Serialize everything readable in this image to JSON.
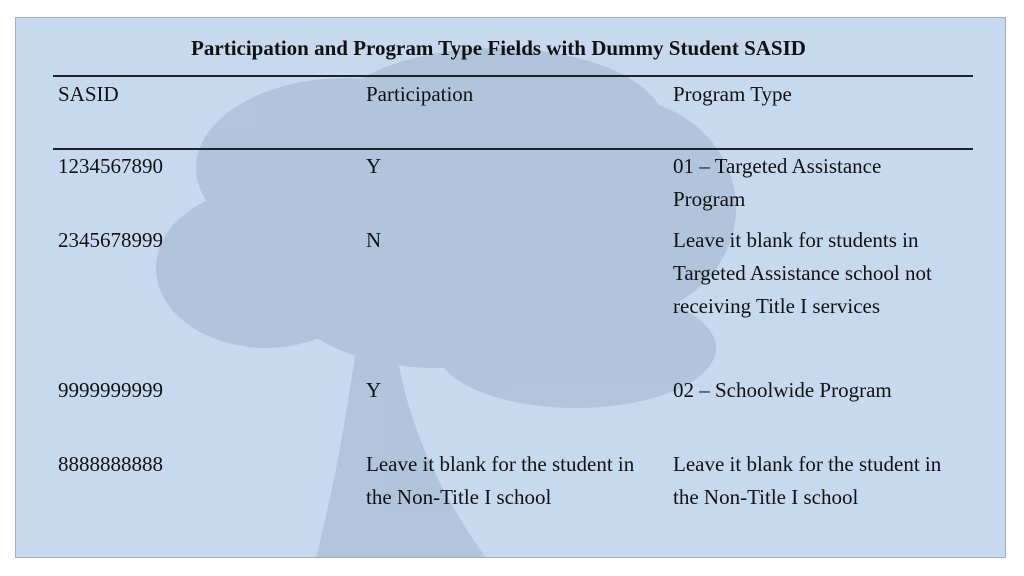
{
  "title": "Participation and Program Type Fields with Dummy Student SASID",
  "columns": [
    "SASID",
    "Participation",
    "Program Type"
  ],
  "rows": [
    {
      "sasid": "1234567890",
      "participation": "Y",
      "program_type": "01 – Targeted Assistance Program"
    },
    {
      "sasid": "2345678999",
      "participation": "N",
      "program_type": "Leave it blank for students in Targeted Assistance school not receiving Title I services"
    },
    {
      "sasid": "9999999999",
      "participation": "Y",
      "program_type": "02 – Schoolwide Program"
    },
    {
      "sasid": "8888888888",
      "participation": "Leave it blank for the student in the Non-Title I school",
      "program_type": "Leave it blank for the student in the Non-Title I school"
    }
  ],
  "colors": {
    "background": "#c7d9ee",
    "watermark": "#9fb3cb"
  }
}
